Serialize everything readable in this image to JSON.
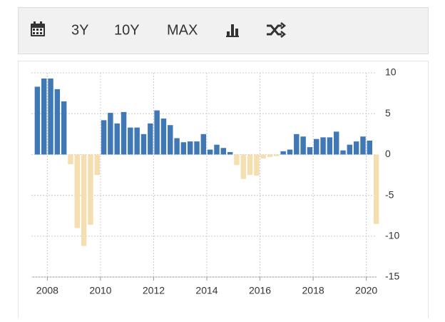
{
  "toolbar": {
    "buttons": [
      "3Y",
      "10Y",
      "MAX"
    ]
  },
  "chart_data": {
    "type": "bar",
    "x": [
      2007.625,
      2007.875,
      2008.125,
      2008.375,
      2008.625,
      2008.875,
      2009.125,
      2009.375,
      2009.625,
      2009.875,
      2010.125,
      2010.375,
      2010.625,
      2010.875,
      2011.125,
      2011.375,
      2011.625,
      2011.875,
      2012.125,
      2012.375,
      2012.625,
      2012.875,
      2013.125,
      2013.375,
      2013.625,
      2013.875,
      2014.125,
      2014.375,
      2014.625,
      2014.875,
      2015.125,
      2015.375,
      2015.625,
      2015.875,
      2016.125,
      2016.375,
      2016.625,
      2016.875,
      2017.125,
      2017.375,
      2017.625,
      2017.875,
      2018.125,
      2018.375,
      2018.625,
      2018.875,
      2019.125,
      2019.375,
      2019.625,
      2019.875,
      2020.125,
      2020.375
    ],
    "values": [
      8.3,
      9.3,
      9.3,
      8.0,
      6.5,
      -1.2,
      -9.0,
      -11.2,
      -8.6,
      -2.5,
      4.2,
      5.1,
      3.8,
      5.2,
      3.3,
      3.3,
      2.5,
      3.8,
      5.4,
      4.4,
      3.6,
      2.0,
      1.5,
      1.6,
      1.6,
      2.5,
      0.6,
      1.2,
      0.8,
      0.3,
      -1.3,
      -3.0,
      -2.5,
      -2.6,
      -0.5,
      -0.3,
      -0.2,
      0.4,
      0.6,
      2.5,
      2.2,
      0.9,
      1.9,
      2.1,
      2.1,
      2.8,
      0.5,
      1.2,
      1.6,
      2.2,
      1.7,
      -8.5
    ],
    "positive_color": "#3f78b4",
    "negative_color": "#f5dfb0",
    "xlim": [
      2007.4,
      2020.6
    ],
    "xticks": [
      2008,
      2010,
      2012,
      2014,
      2016,
      2018,
      2020
    ],
    "ylim": [
      -15,
      10
    ],
    "yticks": [
      -15,
      -10,
      -5,
      0,
      5,
      10
    ],
    "grid": true
  }
}
